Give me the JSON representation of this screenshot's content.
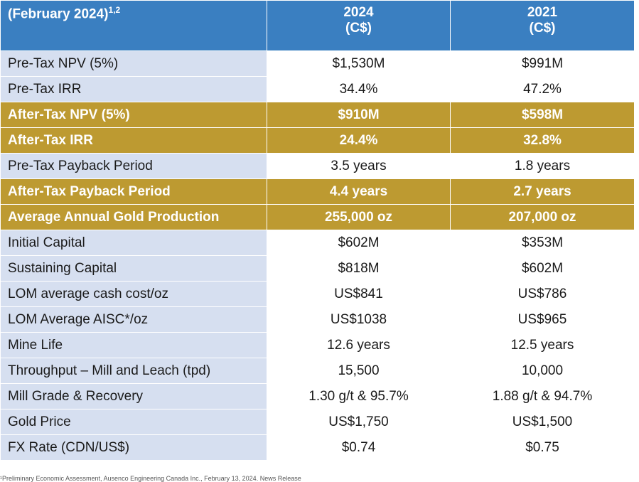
{
  "header": {
    "label": "(February 2024)",
    "label_sup": "1,2",
    "col_2024_year": "2024",
    "col_2024_unit": "(C$)",
    "col_2021_year": "2021",
    "col_2021_unit": "(C$)"
  },
  "rows": [
    {
      "label": "Pre-Tax NPV (5%)",
      "v2024": "$1,530M",
      "v2021": "$991M"
    },
    {
      "label": "Pre-Tax IRR",
      "v2024": "34.4%",
      "v2021": "47.2%"
    },
    {
      "label": "After-Tax NPV (5%)",
      "v2024": "$910M",
      "v2021": "$598M"
    },
    {
      "label": "After-Tax IRR",
      "v2024": "24.4%",
      "v2021": "32.8%"
    },
    {
      "label": "Pre-Tax Payback Period",
      "v2024": "3.5 years",
      "v2021": "1.8 years"
    },
    {
      "label": "After-Tax Payback Period",
      "v2024": "4.4 years",
      "v2021": "2.7 years"
    },
    {
      "label": "Average Annual Gold Production",
      "v2024": "255,000 oz",
      "v2021": "207,000 oz"
    },
    {
      "label": "Initial Capital",
      "v2024": "$602M",
      "v2021": "$353M"
    },
    {
      "label": "Sustaining Capital",
      "v2024": "$818M",
      "v2021": "$602M"
    },
    {
      "label": "LOM average cash cost/oz",
      "v2024": "US$841",
      "v2021": "US$786"
    },
    {
      "label": "LOM Average AISC*/oz",
      "v2024": "US$1038",
      "v2021": "US$965"
    },
    {
      "label": "Mine Life",
      "v2024": "12.6 years",
      "v2021": "12.5 years"
    },
    {
      "label": "Throughput – Mill and Leach (tpd)",
      "v2024": "15,500",
      "v2021": "10,000"
    },
    {
      "label": "Mill Grade & Recovery",
      "v2024": "1.30 g/t & 95.7%",
      "v2021": "1.88 g/t & 94.7%"
    },
    {
      "label": "Gold Price",
      "v2024": "US$1,750",
      "v2021": "US$1,500"
    },
    {
      "label": "FX Rate (CDN/US$)",
      "v2024": "$0.74",
      "v2021": "$0.75"
    }
  ],
  "footnote": "¹Preliminary Economic Assessment, Ausenco Engineering Canada Inc., February 13, 2024. News Release",
  "colors": {
    "header_blue": "#3a7fc1",
    "gold": "#bd9a31",
    "label_bg": "#d6dff0"
  }
}
